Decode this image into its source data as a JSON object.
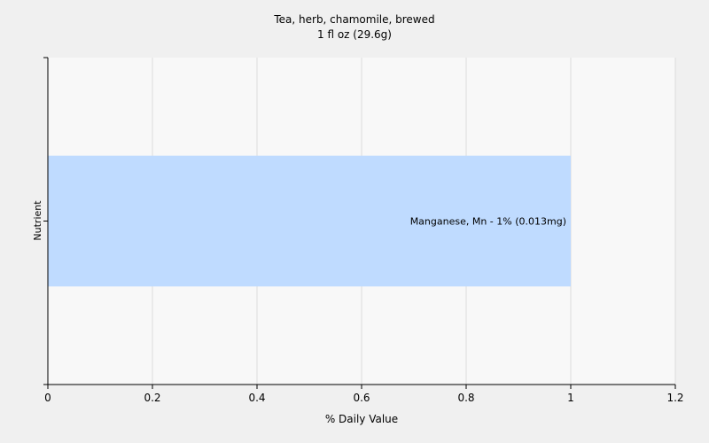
{
  "chart_data": {
    "type": "bar",
    "orientation": "horizontal",
    "title": "Tea, herb, chamomile, brewed",
    "subtitle": "1 fl oz (29.6g)",
    "xlabel": "% Daily Value",
    "ylabel": "Nutrient",
    "xlim": [
      0,
      1.2
    ],
    "x_ticks": [
      0,
      0.2,
      0.4,
      0.6,
      0.8,
      1,
      1.2
    ],
    "x_tick_labels": [
      "0",
      "0.2",
      "0.4",
      "0.6",
      "0.8",
      "1",
      "1.2"
    ],
    "grid": true,
    "categories": [
      "Manganese, Mn"
    ],
    "values": [
      1
    ],
    "data_labels": [
      "Manganese, Mn - 1% (0.013mg)"
    ],
    "colors": {
      "bar": "#bfdbff",
      "plot_bg": "#f8f8f8",
      "page_bg": "#f0f0f0",
      "grid": "#dcdcdc",
      "axis": "#000000"
    }
  }
}
